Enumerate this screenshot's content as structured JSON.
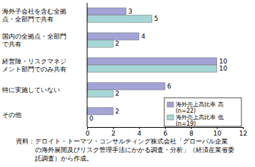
{
  "chart_data": {
    "type": "bar",
    "orientation": "horizontal",
    "categories": [
      "海外子会社を含む全拠\n点・全部門で共有",
      "国内の全拠点・全部門\nで共有",
      "経営陣・リスクマネジ\nメント部門でのみ共有",
      "特に実施していない",
      "その他"
    ],
    "series": [
      {
        "name": "海外売上高比率 高\n(n=22)",
        "color": "#a3a3d6",
        "values": [
          3,
          4,
          10,
          6,
          2
        ]
      },
      {
        "name": "海外売上高比率 低\n(n=19)",
        "color": "#a6d6d6",
        "values": [
          5,
          2,
          10,
          2,
          0
        ]
      }
    ],
    "xlim": [
      0,
      12
    ],
    "xticks": [
      0,
      2,
      4,
      6,
      8,
      10,
      12
    ],
    "grid": false,
    "data_labels": true,
    "legend": "lower right",
    "annotations": [
      "資料：デロイト・トーマツ・コンサルティング株式会社「グローバル企業\nの海外展開及びリスク管理手法にかかる調査・分析」（経済産業省委\n託調査）から作成。"
    ]
  }
}
